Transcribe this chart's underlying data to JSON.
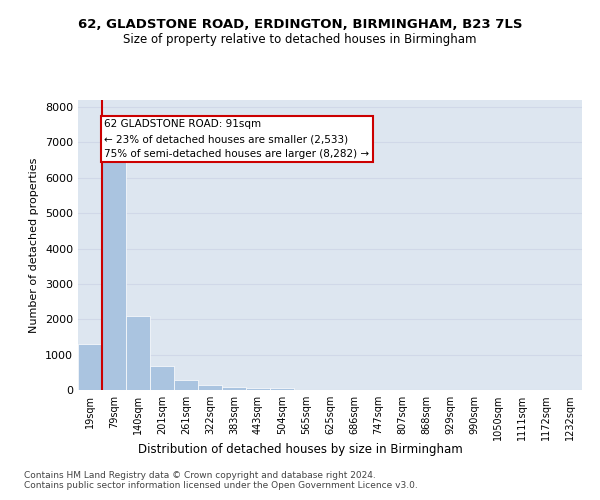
{
  "title1": "62, GLADSTONE ROAD, ERDINGTON, BIRMINGHAM, B23 7LS",
  "title2": "Size of property relative to detached houses in Birmingham",
  "xlabel": "Distribution of detached houses by size in Birmingham",
  "ylabel": "Number of detached properties",
  "footnote1": "Contains HM Land Registry data © Crown copyright and database right 2024.",
  "footnote2": "Contains public sector information licensed under the Open Government Licence v3.0.",
  "annotation_line1": "62 GLADSTONE ROAD: 91sqm",
  "annotation_line2": "← 23% of detached houses are smaller (2,533)",
  "annotation_line3": "75% of semi-detached houses are larger (8,282) →",
  "bar_values": [
    1300,
    6600,
    2080,
    680,
    270,
    140,
    90,
    55,
    55,
    0,
    0,
    0,
    0,
    0,
    0,
    0,
    0,
    0,
    0,
    0,
    0
  ],
  "bar_labels": [
    "19sqm",
    "79sqm",
    "140sqm",
    "201sqm",
    "261sqm",
    "322sqm",
    "383sqm",
    "443sqm",
    "504sqm",
    "565sqm",
    "625sqm",
    "686sqm",
    "747sqm",
    "807sqm",
    "868sqm",
    "929sqm",
    "990sqm",
    "1050sqm",
    "1111sqm",
    "1172sqm",
    "1232sqm"
  ],
  "ylim": [
    0,
    8200
  ],
  "yticks": [
    0,
    1000,
    2000,
    3000,
    4000,
    5000,
    6000,
    7000,
    8000
  ],
  "bar_color": "#aac4e0",
  "property_line_color": "#cc0000",
  "annotation_box_color": "#cc0000",
  "grid_color": "#d0d8e8",
  "background_color": "#dde6f0"
}
